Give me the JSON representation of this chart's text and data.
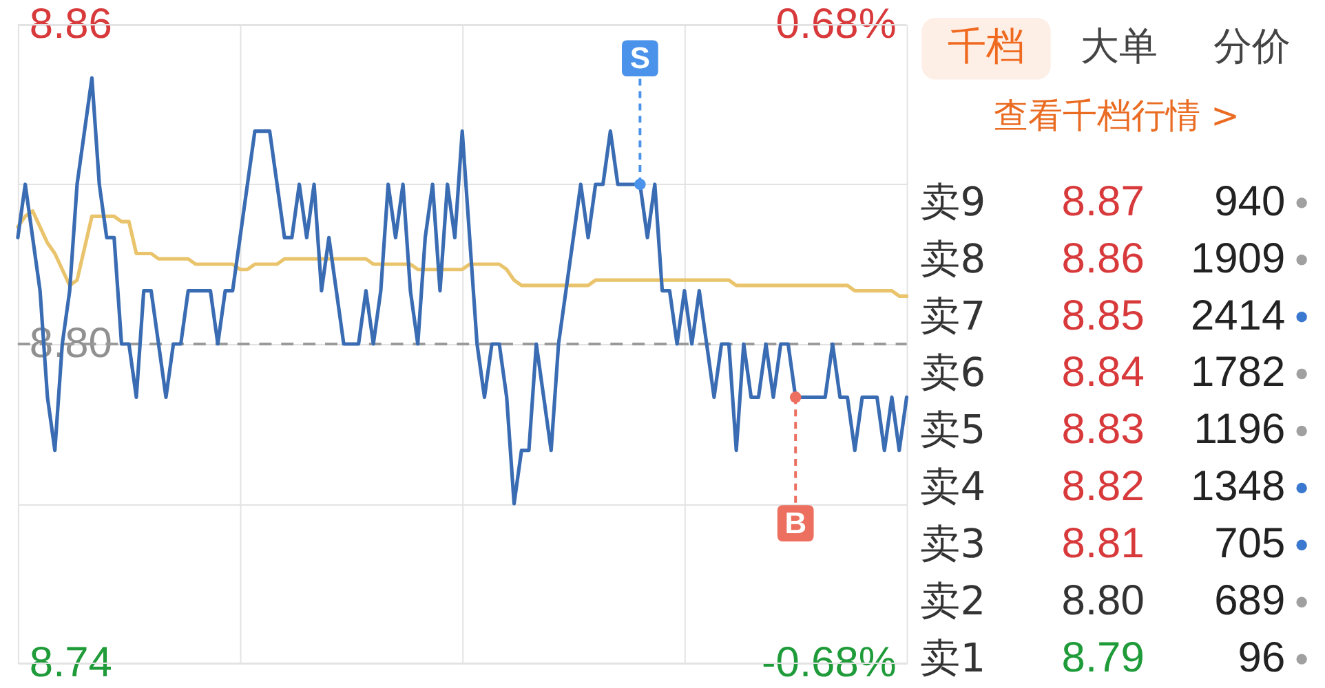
{
  "chart_data": [
    {
      "type": "line",
      "categories": [
        null,
        null,
        null,
        null,
        null,
        null,
        null,
        null,
        null,
        null,
        null,
        null,
        null,
        null,
        null,
        null,
        null,
        null,
        null,
        null,
        null,
        null,
        null,
        null,
        null,
        null,
        null,
        null,
        null,
        null,
        null,
        null,
        null,
        null,
        null,
        null,
        null,
        null,
        null,
        null,
        null,
        null,
        null,
        null,
        null,
        null,
        null,
        null,
        null,
        null,
        null,
        null,
        null,
        null,
        null,
        null,
        null,
        null,
        null,
        null,
        null,
        null,
        null,
        null,
        null,
        null,
        null,
        null,
        null,
        null,
        null,
        null,
        null,
        null,
        null,
        null,
        null,
        null,
        null,
        null,
        null,
        null,
        null,
        null,
        null,
        null,
        null,
        null,
        null,
        null,
        null,
        null,
        null,
        null,
        null,
        null,
        null,
        null,
        null,
        null,
        null,
        null,
        null,
        null,
        null,
        null,
        null,
        null,
        null,
        null,
        null,
        null,
        null,
        null,
        null,
        null,
        null,
        null,
        null,
        null,
        null
      ],
      "series": [
        {
          "color": "#e9c46c",
          "values": [
            8.822,
            8.824,
            8.825,
            8.822,
            8.819,
            8.817,
            8.814,
            8.811,
            8.812,
            8.818,
            8.824,
            8.824,
            8.824,
            8.824,
            8.823,
            8.823,
            8.817,
            8.817,
            8.817,
            8.816,
            8.816,
            8.816,
            8.816,
            8.816,
            8.815,
            8.815,
            8.815,
            8.815,
            8.815,
            8.815,
            8.814,
            8.814,
            8.815,
            8.815,
            8.815,
            8.815,
            8.816,
            8.816,
            8.816,
            8.816,
            8.816,
            8.816,
            8.816,
            8.816,
            8.816,
            8.816,
            8.816,
            8.816,
            8.815,
            8.815,
            8.815,
            8.815,
            8.815,
            8.815,
            8.814,
            8.814,
            8.814,
            8.814,
            8.814,
            8.814,
            8.814,
            8.815,
            8.815,
            8.815,
            8.815,
            8.815,
            8.814,
            8.812,
            8.811,
            8.811,
            8.811,
            8.811,
            8.811,
            8.811,
            8.811,
            8.811,
            8.811,
            8.811,
            8.812,
            8.812,
            8.812,
            8.812,
            8.812,
            8.812,
            8.812,
            8.812,
            8.812,
            8.812,
            8.812,
            8.812,
            8.812,
            8.812,
            8.812,
            8.812,
            8.812,
            8.812,
            8.812,
            8.811,
            8.811,
            8.811,
            8.811,
            8.811,
            8.811,
            8.811,
            8.811,
            8.811,
            8.811,
            8.811,
            8.811,
            8.811,
            8.811,
            8.811,
            8.811,
            8.81,
            8.81,
            8.81,
            8.81,
            8.81,
            8.81,
            8.809,
            8.809
          ]
        },
        {
          "color": "#3a6cb3",
          "values": [
            8.82,
            8.83,
            8.82,
            8.81,
            8.79,
            8.78,
            8.8,
            8.81,
            8.83,
            8.84,
            8.85,
            8.83,
            8.82,
            8.82,
            8.8,
            8.8,
            8.79,
            8.81,
            8.81,
            8.8,
            8.79,
            8.8,
            8.8,
            8.81,
            8.81,
            8.81,
            8.81,
            8.8,
            8.81,
            8.81,
            8.82,
            8.83,
            8.84,
            8.84,
            8.84,
            8.83,
            8.82,
            8.82,
            8.83,
            8.82,
            8.83,
            8.81,
            8.82,
            8.81,
            8.8,
            8.8,
            8.8,
            8.81,
            8.8,
            8.81,
            8.83,
            8.82,
            8.83,
            8.81,
            8.8,
            8.82,
            8.83,
            8.81,
            8.83,
            8.82,
            8.84,
            8.82,
            8.8,
            8.79,
            8.8,
            8.8,
            8.79,
            8.77,
            8.78,
            8.78,
            8.8,
            8.79,
            8.78,
            8.8,
            8.81,
            8.82,
            8.83,
            8.82,
            8.83,
            8.83,
            8.84,
            8.83,
            8.83,
            8.83,
            8.83,
            8.82,
            8.83,
            8.81,
            8.81,
            8.8,
            8.81,
            8.8,
            8.81,
            8.8,
            8.79,
            8.8,
            8.8,
            8.78,
            8.8,
            8.79,
            8.79,
            8.8,
            8.79,
            8.8,
            8.8,
            8.79,
            8.79,
            8.79,
            8.79,
            8.79,
            8.8,
            8.79,
            8.79,
            8.78,
            8.79,
            8.79,
            8.79,
            8.78,
            8.79,
            8.78,
            8.79
          ]
        },
        {
          "name": "S",
          "type": "scatter",
          "color": "#4b92ea",
          "values": [
            null,
            null,
            null,
            null,
            null,
            null,
            null,
            null,
            null,
            null,
            null,
            null,
            null,
            null,
            null,
            null,
            null,
            null,
            null,
            null,
            null,
            null,
            null,
            null,
            null,
            null,
            null,
            null,
            null,
            null,
            null,
            null,
            null,
            null,
            null,
            null,
            null,
            null,
            null,
            null,
            null,
            null,
            null,
            null,
            null,
            null,
            null,
            null,
            null,
            null,
            null,
            null,
            null,
            null,
            null,
            null,
            null,
            null,
            null,
            null,
            null,
            null,
            null,
            null,
            null,
            null,
            null,
            null,
            null,
            null,
            null,
            null,
            null,
            null,
            null,
            null,
            null,
            null,
            null,
            null,
            null,
            null,
            null,
            null,
            8.83,
            null,
            null,
            null,
            null,
            null,
            null,
            null,
            null,
            null,
            null,
            null,
            null,
            null,
            null,
            null,
            null,
            null,
            null,
            null,
            null,
            null,
            null,
            null,
            null,
            null,
            null,
            null,
            null,
            null,
            null,
            null,
            null,
            null,
            null,
            null,
            null
          ]
        },
        {
          "name": "B",
          "type": "scatter",
          "color": "#ec6f5f",
          "values": [
            null,
            null,
            null,
            null,
            null,
            null,
            null,
            null,
            null,
            null,
            null,
            null,
            null,
            null,
            null,
            null,
            null,
            null,
            null,
            null,
            null,
            null,
            null,
            null,
            null,
            null,
            null,
            null,
            null,
            null,
            null,
            null,
            null,
            null,
            null,
            null,
            null,
            null,
            null,
            null,
            null,
            null,
            null,
            null,
            null,
            null,
            null,
            null,
            null,
            null,
            null,
            null,
            null,
            null,
            null,
            null,
            null,
            null,
            null,
            null,
            null,
            null,
            null,
            null,
            null,
            null,
            null,
            null,
            null,
            null,
            null,
            null,
            null,
            null,
            null,
            null,
            null,
            null,
            null,
            null,
            null,
            null,
            null,
            null,
            null,
            null,
            null,
            null,
            null,
            null,
            null,
            null,
            null,
            null,
            null,
            null,
            null,
            null,
            null,
            null,
            null,
            null,
            null,
            null,
            null,
            8.79,
            null,
            null,
            null,
            null,
            null,
            null,
            null,
            null,
            null,
            null,
            null,
            null,
            null,
            null,
            null
          ]
        }
      ],
      "ylim": [
        8.74,
        8.86
      ],
      "yticks": [
        8.74,
        {
          "value": 8.77,
          "label": null
        },
        {
          "value": 8.8,
          "label": "8.80"
        },
        {
          "value": 8.83,
          "label": null
        },
        8.86
      ],
      "y2lim": [
        -0.68,
        0.68
      ],
      "y2ticks": [
        {
          "value": -0.68,
          "label": "-0.68%"
        },
        {
          "value": 0.68,
          "label": "0.68%"
        }
      ],
      "ref_lines": [
        {
          "axis": "y",
          "value": 8.8,
          "color": "#9a9a9a",
          "line_style": "dashed"
        }
      ],
      "grid": true
    },
    {
      "type": "other",
      "annotations": [
        "千档",
        "大单",
        "分价",
        "查看千档行情 >"
      ],
      "categories": [
        "卖9",
        "卖8",
        "卖7",
        "卖6",
        "卖5",
        "卖4",
        "卖3",
        "卖2",
        "卖1"
      ],
      "series": [
        {
          "values": [
            8.87,
            8.86,
            8.85,
            8.84,
            8.83,
            8.82,
            8.81,
            8.8,
            8.79
          ],
          "value_labels": [
            "8.87",
            "8.86",
            "8.85",
            "8.84",
            "8.83",
            "8.82",
            "8.81",
            "8.80",
            "8.79"
          ],
          "colors": [
            "#d8393b",
            "#d8393b",
            "#d8393b",
            "#d8393b",
            "#d8393b",
            "#d8393b",
            "#d8393b",
            "#333333",
            "#1f9b3a"
          ]
        },
        {
          "values": [
            940,
            1909,
            2414,
            1782,
            1196,
            1348,
            705,
            689,
            96
          ],
          "color": "#222222",
          "marker": "circle",
          "colors": [
            "#a0a0a0",
            "#a0a0a0",
            "#3b78d0",
            "#a0a0a0",
            "#a0a0a0",
            "#3b78d0",
            "#3b78d0",
            "#a0a0a0",
            "#a0a0a0"
          ]
        }
      ],
      "data_labels": true
    }
  ]
}
